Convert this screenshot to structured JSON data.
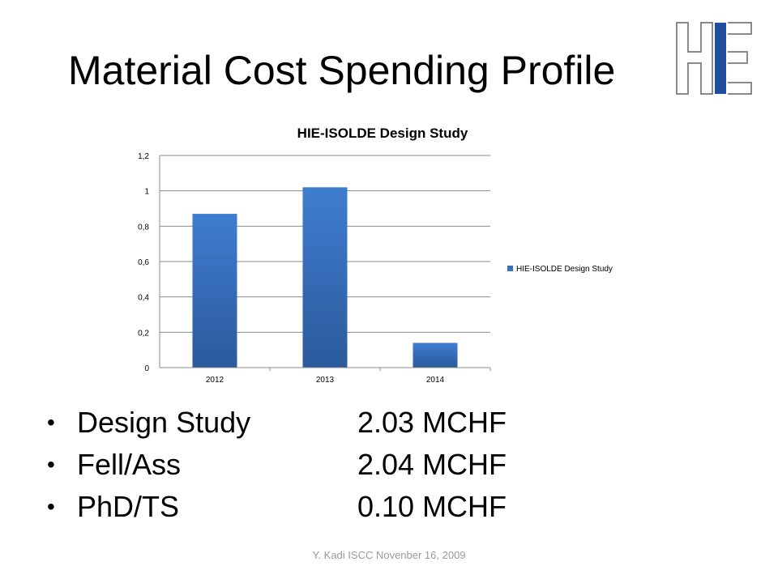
{
  "slide": {
    "title": "Material Cost Spending Profile",
    "footer": "Y. Kadi   ISCC Novenber 16, 2009"
  },
  "logo": {
    "text": "HE",
    "colors": {
      "outline": "#8a8a8a",
      "fill": "#1f4e9c"
    }
  },
  "chart_data": {
    "type": "bar",
    "title": "HIE-ISOLDE Design Study",
    "categories": [
      "2012",
      "2013",
      "2014"
    ],
    "series": [
      {
        "name": "HIE-ISOLDE Design Study",
        "values": [
          0.87,
          1.02,
          0.14
        ],
        "color": "#3a72c0"
      }
    ],
    "ylim": [
      0,
      1.2
    ],
    "yticks": [
      0,
      0.2,
      0.4,
      0.6,
      0.8,
      1,
      1.2
    ],
    "ytick_labels": [
      "0",
      "0,2",
      "0,4",
      "0,6",
      "0,8",
      "1",
      "1,2"
    ],
    "grid": true,
    "legend_position": "right"
  },
  "bullets": [
    {
      "label": "Design Study",
      "value": "2.03 MCHF"
    },
    {
      "label": "Fell/Ass",
      "value": "2.04 MCHF"
    },
    {
      "label": "PhD/TS",
      "value": "0.10 MCHF"
    }
  ]
}
